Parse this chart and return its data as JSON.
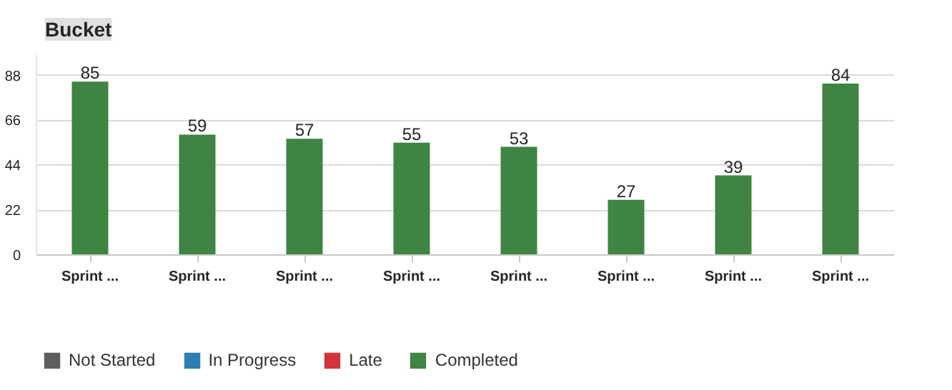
{
  "chart_data": {
    "type": "bar",
    "title": "Bucket",
    "stacked": true,
    "grid": "y",
    "legend": "bottom",
    "categories": [
      "Sprint ...",
      "Sprint ...",
      "Sprint ...",
      "Sprint ...",
      "Sprint ...",
      "Sprint ...",
      "Sprint ...",
      "Sprint ..."
    ],
    "ylim": [
      0,
      98
    ],
    "yticks": [
      0,
      22,
      44,
      66,
      88
    ],
    "series": [
      {
        "name": "Not Started",
        "color": "#5e5e5e",
        "values": [
          0,
          0,
          0,
          0,
          0,
          0,
          0,
          0
        ]
      },
      {
        "name": "In Progress",
        "color": "#2f7db2",
        "values": [
          0,
          0,
          0,
          0,
          0,
          0,
          0,
          0
        ]
      },
      {
        "name": "Late",
        "color": "#d3343a",
        "values": [
          0,
          0,
          0,
          0,
          0,
          0,
          0,
          0
        ]
      },
      {
        "name": "Completed",
        "color": "#3f8443",
        "values": [
          85,
          59,
          57,
          55,
          53,
          27,
          39,
          84
        ],
        "value_labels": [
          "85",
          "59",
          "57",
          "55",
          "53",
          "27",
          "39",
          "84"
        ]
      }
    ]
  }
}
